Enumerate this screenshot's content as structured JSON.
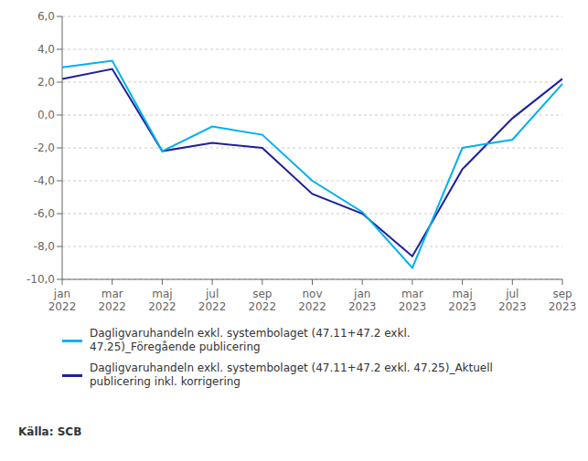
{
  "chart_data": {
    "type": "line",
    "source": "Källa: SCB",
    "categories": [
      "jan\n2022",
      "mar\n2022",
      "maj\n2022",
      "jul\n2022",
      "sep\n2022",
      "nov\n2022",
      "jan\n2023",
      "mar\n2023",
      "maj\n2023",
      "jul\n2023",
      "sep\n2023"
    ],
    "series": [
      {
        "name": "Dagligvaruhandeln exkl. systembolaget (47.11+47.2 exkl. 47.25)_Aktuell\npublicering inkl. korrigering",
        "color": "#1f1f9b",
        "values": [
          2.2,
          2.8,
          -2.2,
          -1.7,
          -2.0,
          -4.8,
          -6.0,
          -8.6,
          -3.3,
          -0.2,
          2.2
        ]
      },
      {
        "name": "Dagligvaruhandeln exkl. systembolaget (47.11+47.2 exkl.\n47.25)_Föregående publicering",
        "color": "#00b0f0",
        "values": [
          2.9,
          3.3,
          -2.2,
          -0.7,
          -1.2,
          -4.0,
          -5.9,
          -9.3,
          -2.0,
          -1.5,
          1.9
        ]
      }
    ],
    "ylim": [
      -10.0,
      6.0
    ],
    "yticks": [
      {
        "value": -10.0,
        "label": "-10,0"
      },
      {
        "value": -8.0,
        "label": "-8,0"
      },
      {
        "value": -6.0,
        "label": "-6,0"
      },
      {
        "value": -4.0,
        "label": "-4,0"
      },
      {
        "value": -2.0,
        "label": "-2,0"
      },
      {
        "value": 0.0,
        "label": "0,0"
      },
      {
        "value": 2.0,
        "label": "2,0"
      },
      {
        "value": 4.0,
        "label": "4,0"
      },
      {
        "value": 6.0,
        "label": "6,0"
      }
    ],
    "grid": true,
    "legend": "bottom"
  }
}
